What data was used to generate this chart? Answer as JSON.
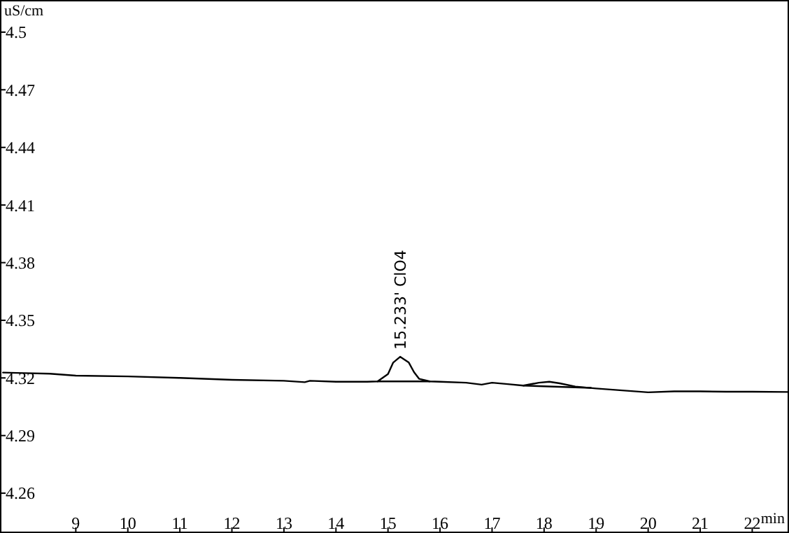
{
  "chart_data": {
    "type": "line",
    "xlabel": "min",
    "ylabel": "uS/cm",
    "xlim": [
      7.57,
      22.68
    ],
    "ylim": [
      4.24,
      4.516
    ],
    "xticks": [
      9,
      10,
      11,
      12,
      13,
      14,
      15,
      16,
      17,
      18,
      19,
      20,
      21,
      22
    ],
    "yticks": [
      4.26,
      4.29,
      4.32,
      4.35,
      4.38,
      4.41,
      4.44,
      4.47,
      {
        "value": 4.5,
        "label": "4.5"
      }
    ],
    "grid": false,
    "line_style": "solid",
    "series": [
      {
        "color": "#000000",
        "x": [
          7.6,
          8.0,
          8.5,
          9.0,
          10.0,
          11.0,
          12.0,
          13.0,
          13.4,
          13.5,
          14.0,
          14.6,
          14.8,
          15.0,
          15.1,
          15.233,
          15.4,
          15.5,
          15.6,
          15.8,
          16.0,
          16.5,
          16.8,
          17.0,
          17.3,
          17.6,
          17.9,
          18.1,
          18.3,
          18.6,
          19.0,
          19.5,
          20.0,
          20.5,
          21.0,
          21.5,
          22.0,
          22.68
        ],
        "values": [
          4.3228,
          4.3225,
          4.3222,
          4.3212,
          4.3208,
          4.32,
          4.319,
          4.3185,
          4.3178,
          4.3185,
          4.318,
          4.318,
          4.3182,
          4.322,
          4.328,
          4.331,
          4.328,
          4.323,
          4.3195,
          4.3182,
          4.318,
          4.3175,
          4.3165,
          4.3175,
          4.3168,
          4.316,
          4.3175,
          4.318,
          4.3172,
          4.3155,
          4.3145,
          4.3135,
          4.3125,
          4.313,
          4.313,
          4.3128,
          4.3128,
          4.3127
        ]
      },
      {
        "color": "#000000",
        "x": [
          14.8,
          15.8
        ],
        "values": [
          4.3182,
          4.3182
        ]
      },
      {
        "color": "#000000",
        "x": [
          17.6,
          18.9
        ],
        "values": [
          4.316,
          4.3148
        ]
      }
    ],
    "annotations": [
      {
        "text": "15.233' ClO4",
        "x": 15.233,
        "y": 4.331
      }
    ]
  }
}
